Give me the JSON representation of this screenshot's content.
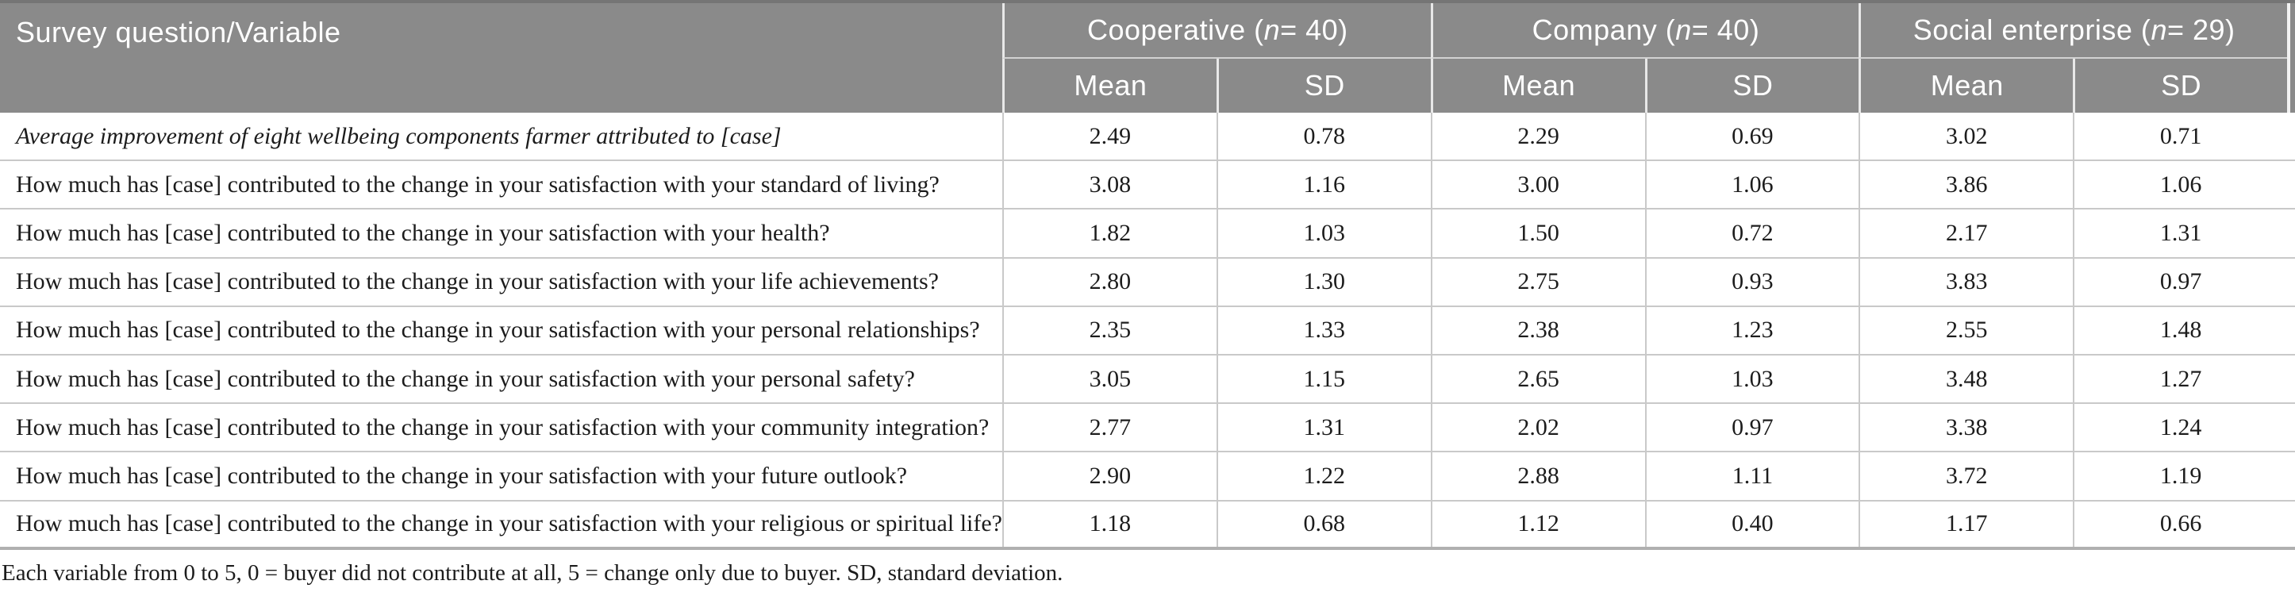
{
  "table": {
    "header": {
      "question_column": "Survey question/Variable",
      "groups": [
        {
          "pre": "Cooperative (",
          "n": "n",
          "post": " = 40)",
          "sub": [
            "Mean",
            "SD"
          ]
        },
        {
          "pre": "Company (",
          "n": "n",
          "post": " = 40)",
          "sub": [
            "Mean",
            "SD"
          ]
        },
        {
          "pre": "Social enterprise (",
          "n": "n",
          "post": " = 29)",
          "sub": [
            "Mean",
            "SD"
          ]
        }
      ]
    },
    "rows": [
      {
        "question": "Average improvement of eight wellbeing components farmer attributed to [case]",
        "values": [
          "2.49",
          "0.78",
          "2.29",
          "0.69",
          "3.02",
          "0.71"
        ]
      },
      {
        "question": "How much has [case] contributed to the change in your satisfaction with your standard of living?",
        "values": [
          "3.08",
          "1.16",
          "3.00",
          "1.06",
          "3.86",
          "1.06"
        ]
      },
      {
        "question": "How much has [case] contributed to the change in your satisfaction with your health?",
        "values": [
          "1.82",
          "1.03",
          "1.50",
          "0.72",
          "2.17",
          "1.31"
        ]
      },
      {
        "question": "How much has [case] contributed to the change in your satisfaction with your life achievements?",
        "values": [
          "2.80",
          "1.30",
          "2.75",
          "0.93",
          "3.83",
          "0.97"
        ]
      },
      {
        "question": "How much has [case] contributed to the change in your satisfaction with your personal relationships?",
        "values": [
          "2.35",
          "1.33",
          "2.38",
          "1.23",
          "2.55",
          "1.48"
        ]
      },
      {
        "question": "How much has [case] contributed to the change in your satisfaction with your personal safety?",
        "values": [
          "3.05",
          "1.15",
          "2.65",
          "1.03",
          "3.48",
          "1.27"
        ]
      },
      {
        "question": "How much has [case] contributed to the change in your satisfaction with your community integration?",
        "values": [
          "2.77",
          "1.31",
          "2.02",
          "0.97",
          "3.38",
          "1.24"
        ]
      },
      {
        "question": "How much has [case] contributed to the change in your satisfaction with your future outlook?",
        "values": [
          "2.90",
          "1.22",
          "2.88",
          "1.11",
          "3.72",
          "1.19"
        ]
      },
      {
        "question": "How much has [case] contributed to the change in your satisfaction with your religious or spiritual life?",
        "values": [
          "1.18",
          "0.68",
          "1.12",
          "0.40",
          "1.17",
          "0.66"
        ]
      }
    ],
    "footnote": "Each variable from 0 to 5, 0 = buyer did not contribute at all, 5 = change only due to buyer. SD, standard deviation.",
    "colors": {
      "header_bg": "#8a8a8a",
      "header_text": "#ffffff",
      "row_divider": "#c9c9c9",
      "bottom_border": "#b0b0b0",
      "body_text": "#1c1c1c"
    }
  }
}
